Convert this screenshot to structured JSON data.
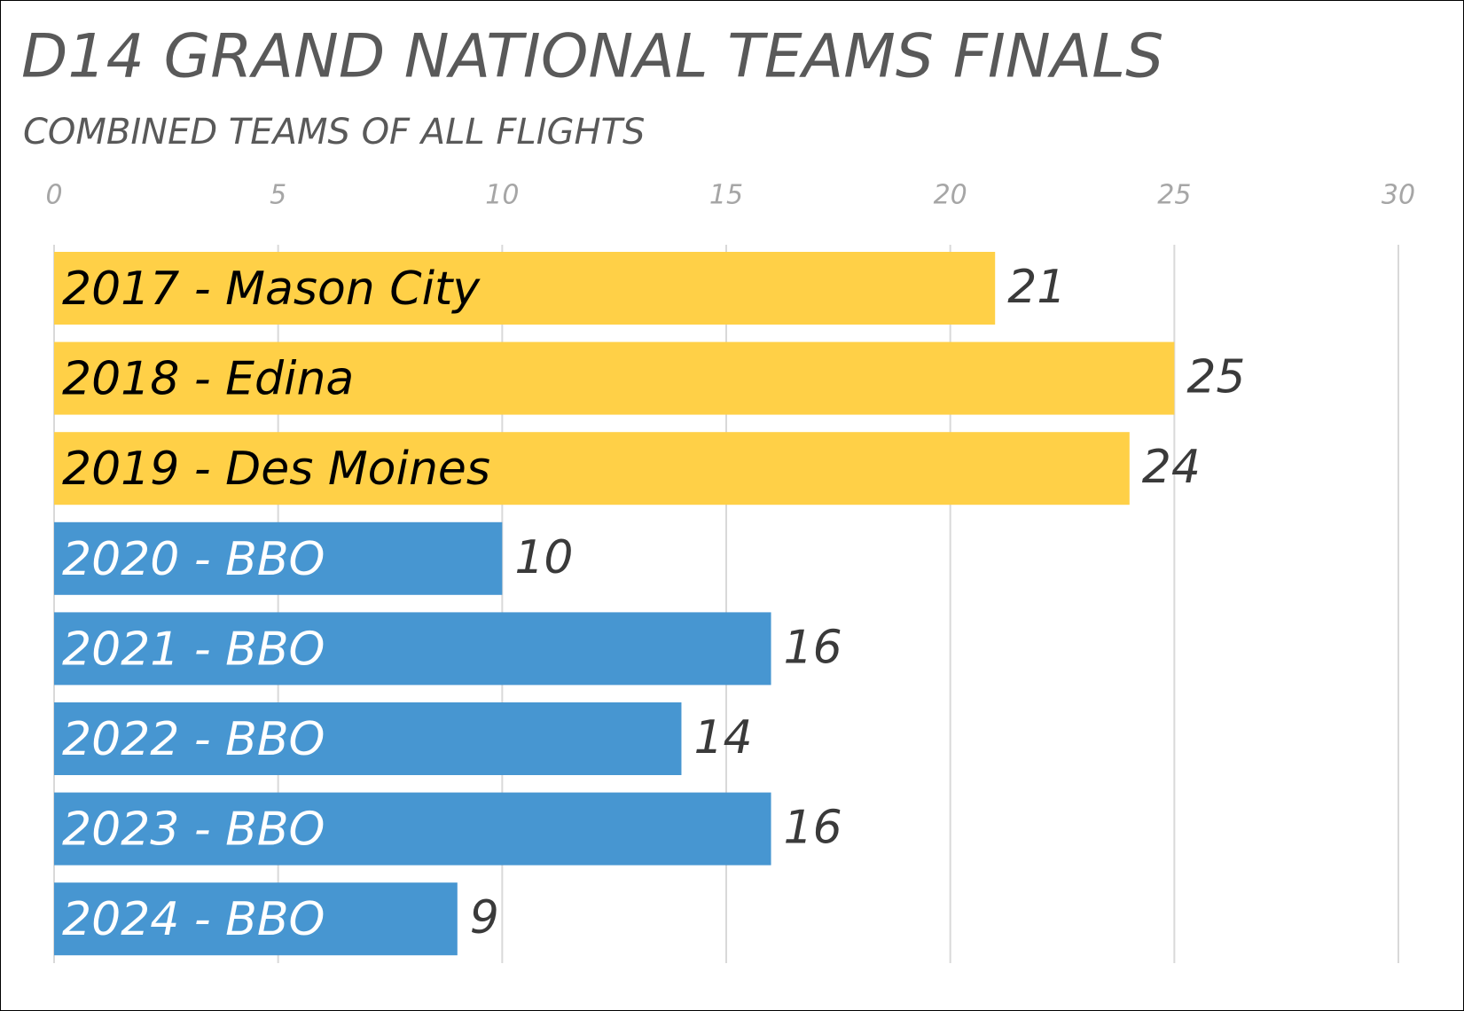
{
  "chart_data": {
    "type": "bar",
    "orientation": "horizontal",
    "title": "D14 GRAND NATIONAL TEAMS FINALS",
    "subtitle": "COMBINED TEAMS OF ALL FLIGHTS",
    "categories": [
      "2017 - Mason City",
      "2018 - Edina",
      "2019 - Des Moines",
      "2020 - BBO",
      "2021 - BBO",
      "2022 - BBO",
      "2023 - BBO",
      "2024 - BBO"
    ],
    "values": [
      21,
      25,
      24,
      10,
      16,
      14,
      16,
      9
    ],
    "colors": [
      "#ffd047",
      "#ffd047",
      "#ffd047",
      "#4796d1",
      "#4796d1",
      "#4796d1",
      "#4796d1",
      "#4796d1"
    ],
    "xlim": [
      0,
      30
    ],
    "xticks": [
      0,
      5,
      10,
      15,
      20,
      25,
      30
    ],
    "grid": true
  }
}
